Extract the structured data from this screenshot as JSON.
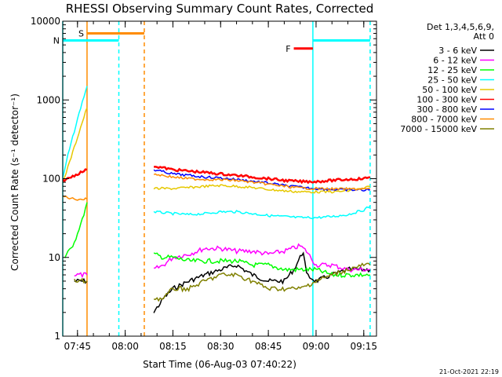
{
  "chart_data": {
    "type": "line",
    "title": "RHESSI Observing Summary Count Rates, Corrected",
    "xlabel": "Start Time (06-Aug-03 07:40:22)",
    "ylabel": "Corrected Count Rate (s⁻¹ detector⁻¹)",
    "y_scale": "log",
    "ylim": [
      1,
      10000
    ],
    "y_ticks": [
      {
        "value": 1,
        "label": "1"
      },
      {
        "value": 10,
        "label": "10"
      },
      {
        "value": 100,
        "label": "100"
      },
      {
        "value": 1000,
        "label": "1000"
      },
      {
        "value": 10000,
        "label": "10000"
      }
    ],
    "xlim": [
      "07:40:22",
      "09:19:00"
    ],
    "x_ticks": [
      "07:45",
      "08:00",
      "08:15",
      "08:30",
      "08:45",
      "09:00",
      "09:15"
    ],
    "legend": {
      "placement": "right",
      "header": [
        "Det 1,3,4,5,6,9,",
        "Att 0"
      ],
      "entries": [
        {
          "label": "3 - 6 keV",
          "color": "#000000"
        },
        {
          "label": "6 - 12 keV",
          "color": "#ff00ff"
        },
        {
          "label": "12 - 25 keV",
          "color": "#00ff00"
        },
        {
          "label": "25 - 50 keV",
          "color": "#00ffff"
        },
        {
          "label": "50 - 100 keV",
          "color": "#e6c800"
        },
        {
          "label": "100 - 300 keV",
          "color": "#ff0000"
        },
        {
          "label": "300 - 800 keV",
          "color": "#0000ff"
        },
        {
          "label": "800 - 7000 keV",
          "color": "#ff8c00"
        },
        {
          "label": "7000 - 15000 keV",
          "color": "#808000"
        }
      ]
    },
    "series": [
      {
        "name": "3 - 6 keV",
        "color": "#000000",
        "x": [
          "07:44",
          "07:46",
          "07:48",
          "08:09",
          "08:12",
          "08:15",
          "08:20",
          "08:25",
          "08:30",
          "08:35",
          "08:40",
          "08:45",
          "08:50",
          "08:53",
          "08:56",
          "08:57",
          "09:00",
          "09:05",
          "09:10",
          "09:15",
          "09:17"
        ],
        "y": [
          5,
          5,
          5,
          2,
          3,
          4,
          5,
          6,
          7,
          8,
          6,
          5,
          5,
          7,
          12,
          6,
          5,
          6,
          7,
          7,
          7
        ]
      },
      {
        "name": "6 - 12 keV",
        "color": "#ff00ff",
        "x": [
          "07:44",
          "07:46",
          "07:48",
          "08:09",
          "08:12",
          "08:15",
          "08:20",
          "08:25",
          "08:30",
          "08:35",
          "08:40",
          "08:45",
          "08:50",
          "08:55",
          "08:57",
          "09:00",
          "09:05",
          "09:10",
          "09:15",
          "09:17"
        ],
        "y": [
          6,
          6,
          6,
          7,
          8,
          10,
          11,
          13,
          13,
          12,
          12,
          11,
          12,
          14,
          12,
          8,
          8,
          7,
          7,
          7
        ]
      },
      {
        "name": "12 - 25 keV",
        "color": "#00ff00",
        "x": [
          "07:41",
          "07:43",
          "07:45",
          "07:47",
          "07:48",
          "08:09",
          "08:12",
          "08:15",
          "08:20",
          "08:25",
          "08:30",
          "08:35",
          "08:40",
          "08:45",
          "08:50",
          "08:55",
          "09:00",
          "09:05",
          "09:10",
          "09:15",
          "09:17"
        ],
        "y": [
          10,
          13,
          20,
          35,
          50,
          11,
          10,
          10,
          9,
          9,
          9,
          9,
          8,
          8,
          7,
          7,
          7,
          6,
          6,
          6,
          6
        ]
      },
      {
        "name": "25 - 50 keV",
        "color": "#00ffff",
        "x": [
          "07:40:22",
          "07:42",
          "07:44",
          "07:46",
          "07:48",
          "08:09",
          "08:15",
          "08:20",
          "08:25",
          "08:30",
          "08:35",
          "08:40",
          "08:45",
          "08:50",
          "08:55",
          "09:00",
          "09:05",
          "09:10",
          "09:15",
          "09:17"
        ],
        "y": [
          100,
          200,
          400,
          800,
          1500,
          38,
          36,
          35,
          36,
          38,
          38,
          36,
          34,
          33,
          32,
          32,
          33,
          35,
          40,
          45
        ]
      },
      {
        "name": "50 - 100 keV",
        "color": "#e6c800",
        "x": [
          "07:40:22",
          "07:42",
          "07:44",
          "07:46",
          "07:48",
          "08:09",
          "08:15",
          "08:20",
          "08:25",
          "08:30",
          "08:35",
          "08:40",
          "08:45",
          "08:50",
          "08:55",
          "09:00",
          "09:05",
          "09:10",
          "09:15",
          "09:17"
        ],
        "y": [
          90,
          140,
          250,
          450,
          800,
          75,
          75,
          77,
          80,
          82,
          80,
          77,
          73,
          70,
          68,
          68,
          68,
          70,
          75,
          80
        ]
      },
      {
        "name": "100 - 300 keV",
        "color": "#ff0000",
        "x": [
          "07:40:22",
          "07:42",
          "07:44",
          "07:46",
          "07:48",
          "08:09",
          "08:15",
          "08:20",
          "08:25",
          "08:30",
          "08:35",
          "08:40",
          "08:45",
          "08:50",
          "08:55",
          "09:00",
          "09:05",
          "09:10",
          "09:15",
          "09:17"
        ],
        "y": [
          95,
          100,
          110,
          120,
          130,
          145,
          130,
          125,
          120,
          115,
          110,
          105,
          100,
          95,
          92,
          92,
          95,
          98,
          100,
          105
        ]
      },
      {
        "name": "300 - 800 keV",
        "color": "#0000ff",
        "x": [
          "08:09",
          "08:15",
          "08:20",
          "08:25",
          "08:30",
          "08:35",
          "08:40",
          "08:45",
          "08:50",
          "08:55",
          "09:00",
          "09:05",
          "09:10",
          "09:15",
          "09:17"
        ],
        "y": [
          130,
          115,
          110,
          105,
          102,
          98,
          93,
          88,
          82,
          78,
          75,
          73,
          72,
          72,
          72
        ]
      },
      {
        "name": "800 - 7000 keV",
        "color": "#ff8c00",
        "x": [
          "07:40:22",
          "07:44",
          "07:48",
          "08:09",
          "08:15",
          "08:20",
          "08:25",
          "08:30",
          "08:35",
          "08:40",
          "08:45",
          "08:50",
          "08:55",
          "09:00",
          "09:05",
          "09:10",
          "09:15",
          "09:17"
        ],
        "y": [
          60,
          55,
          55,
          115,
          105,
          100,
          98,
          97,
          95,
          90,
          85,
          80,
          76,
          75,
          74,
          74,
          74,
          75
        ]
      },
      {
        "name": "7000 - 15000 keV",
        "color": "#808000",
        "x": [
          "07:44",
          "07:46",
          "07:48",
          "08:09",
          "08:12",
          "08:15",
          "08:20",
          "08:25",
          "08:30",
          "08:35",
          "08:40",
          "08:45",
          "08:50",
          "08:55",
          "09:00",
          "09:05",
          "09:10",
          "09:15",
          "09:17"
        ],
        "y": [
          5,
          5,
          5,
          3,
          3,
          4,
          4,
          5,
          6,
          6,
          5,
          4,
          4,
          4,
          5,
          6,
          7,
          8,
          8
        ]
      }
    ],
    "vertical_markers": [
      {
        "time": "07:40:22",
        "color": "#00ffff",
        "style": "solid"
      },
      {
        "time": "07:48",
        "color": "#ff8c00",
        "style": "solid"
      },
      {
        "time": "07:58",
        "color": "#00ffff",
        "style": "dashed"
      },
      {
        "time": "08:06",
        "color": "#ff8c00",
        "style": "dashed"
      },
      {
        "time": "08:59",
        "color": "#00ffff",
        "style": "solid"
      },
      {
        "time": "09:17",
        "color": "#00ffff",
        "style": "dashed"
      }
    ],
    "flag_bars": [
      {
        "label": "S",
        "start": "07:48",
        "end": "08:06",
        "value": 7000,
        "color": "#ff8c00"
      },
      {
        "label": "N",
        "start": "07:40:22",
        "end": "07:58",
        "value": 5700,
        "color": "#00ffff"
      },
      {
        "label": "F",
        "start": "08:53",
        "end": "08:59",
        "value": 4500,
        "color": "#ff0000"
      },
      {
        "label": "",
        "start": "08:59",
        "end": "09:17",
        "value": 5700,
        "color": "#00ffff"
      }
    ]
  },
  "footer": {
    "timestamp": "21-Oct-2021 22:19"
  }
}
